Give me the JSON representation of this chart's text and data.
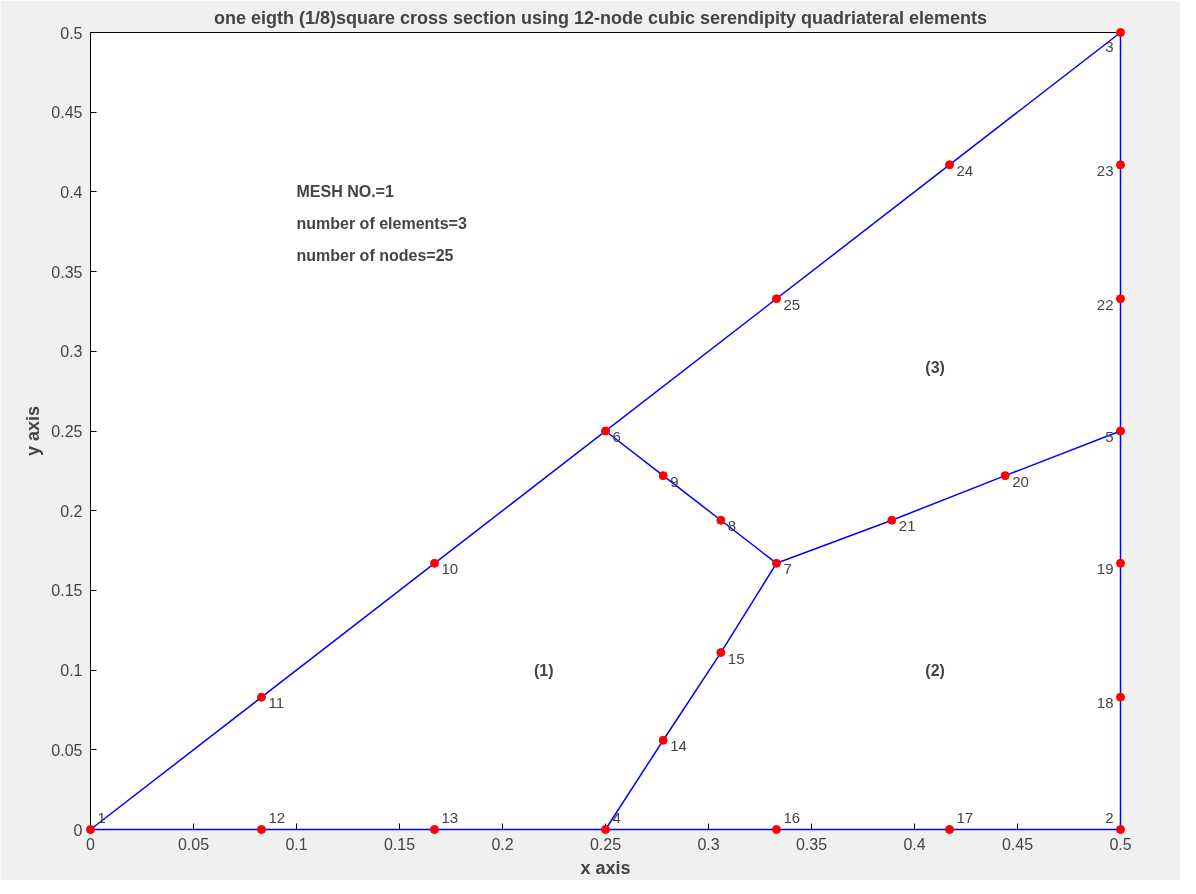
{
  "chart_data": {
    "type": "line",
    "title": "one eigth (1/8)square cross section  using  12-node cubic serendipity quadriateral elements",
    "xlabel": "x axis",
    "ylabel": "y axis",
    "xlim": [
      0,
      0.5
    ],
    "ylim": [
      0,
      0.5
    ],
    "xticks": [
      0,
      0.05,
      0.1,
      0.15,
      0.2,
      0.25,
      0.3,
      0.35,
      0.4,
      0.45,
      0.5
    ],
    "yticks": [
      0,
      0.05,
      0.1,
      0.15,
      0.2,
      0.25,
      0.3,
      0.35,
      0.4,
      0.45,
      0.5
    ],
    "grid": false,
    "marker": "none",
    "line_style": "solid",
    "annotations": [
      "MESH NO.=1",
      "number of elements=3",
      "number of nodes=25",
      "(1)",
      "(2)",
      "(3)",
      {
        "text": "1",
        "x": 0,
        "y": 0
      },
      {
        "text": "2",
        "x": 0.5,
        "y": 0
      },
      {
        "text": "3",
        "x": 0.5,
        "y": 0.5
      },
      {
        "text": "4",
        "x": 0.25,
        "y": 0
      },
      {
        "text": "5",
        "x": 0.5,
        "y": 0.25
      },
      {
        "text": "6",
        "x": 0.25,
        "y": 0.25
      },
      {
        "text": "7",
        "x": 0.333,
        "y": 0.167
      },
      {
        "text": "8",
        "x": 0.306,
        "y": 0.194
      },
      {
        "text": "9",
        "x": 0.278,
        "y": 0.222
      },
      {
        "text": "10",
        "x": 0.167,
        "y": 0.167
      },
      {
        "text": "11",
        "x": 0.083,
        "y": 0.083
      },
      {
        "text": "12",
        "x": 0.083,
        "y": 0
      },
      {
        "text": "13",
        "x": 0.167,
        "y": 0
      },
      {
        "text": "14",
        "x": 0.278,
        "y": 0.056
      },
      {
        "text": "15",
        "x": 0.306,
        "y": 0.111
      },
      {
        "text": "16",
        "x": 0.333,
        "y": 0
      },
      {
        "text": "17",
        "x": 0.417,
        "y": 0
      },
      {
        "text": "18",
        "x": 0.5,
        "y": 0.083
      },
      {
        "text": "19",
        "x": 0.5,
        "y": 0.167
      },
      {
        "text": "20",
        "x": 0.444,
        "y": 0.222
      },
      {
        "text": "21",
        "x": 0.389,
        "y": 0.194
      },
      {
        "text": "22",
        "x": 0.5,
        "y": 0.333
      },
      {
        "text": "23",
        "x": 0.5,
        "y": 0.417
      },
      {
        "text": "24",
        "x": 0.417,
        "y": 0.417
      },
      {
        "text": "25",
        "x": 0.333,
        "y": 0.333
      }
    ],
    "series": [
      {
        "color": "#0000ff",
        "x": [
          0,
          0.5
        ],
        "values": [
          0,
          0
        ]
      },
      {
        "color": "#0000ff",
        "x": [
          0.5,
          0.5
        ],
        "values": [
          0,
          0.5
        ]
      },
      {
        "color": "#0000ff",
        "x": [
          0,
          0.5
        ],
        "values": [
          0,
          0.5
        ]
      },
      {
        "color": "#0000ff",
        "x": [
          0.25,
          0.278,
          0.306,
          0.333
        ],
        "values": [
          0.25,
          0.222,
          0.194,
          0.167
        ]
      },
      {
        "color": "#0000ff",
        "x": [
          0.25,
          0.278,
          0.306,
          0.333
        ],
        "values": [
          0,
          0.056,
          0.111,
          0.167
        ]
      },
      {
        "color": "#0000ff",
        "x": [
          0.333,
          0.389,
          0.444,
          0.5
        ],
        "values": [
          0.167,
          0.194,
          0.222,
          0.25
        ]
      },
      {
        "type": "scatter",
        "marker": "circle",
        "color": "#ff0000",
        "x": [
          0,
          0.5,
          0.5,
          0.25,
          0.5,
          0.25,
          0.333,
          0.306,
          0.278,
          0.167,
          0.083,
          0.083,
          0.167,
          0.278,
          0.306,
          0.333,
          0.417,
          0.5,
          0.5,
          0.444,
          0.389,
          0.5,
          0.5,
          0.417,
          0.333
        ],
        "values": [
          0,
          0,
          0.5,
          0,
          0.25,
          0.25,
          0.167,
          0.194,
          0.222,
          0.167,
          0.083,
          0,
          0,
          0.056,
          0.111,
          0,
          0,
          0.083,
          0.167,
          0.222,
          0.194,
          0.333,
          0.417,
          0.417,
          0.333
        ]
      }
    ]
  }
}
